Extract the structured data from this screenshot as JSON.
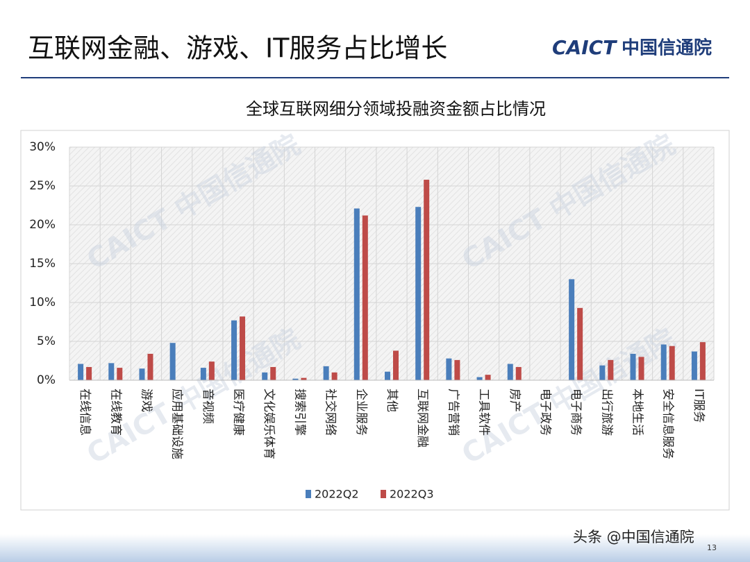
{
  "header": {
    "title": "互联网金融、游戏、IT服务占比增长",
    "logo_en": "CAICT",
    "logo_cn": "中国信通院"
  },
  "watermark": "CAICT 中国信通院",
  "footer": {
    "source": "头条 @中国信通院",
    "page_number": "13"
  },
  "chart_data": {
    "type": "bar",
    "title": "全球互联网细分领域投融资金额占比情况",
    "categories": [
      "在线信息",
      "在线教育",
      "游戏",
      "应用基础设施",
      "音视频",
      "医疗健康",
      "文化娱乐体育",
      "搜索引擎",
      "社交网络",
      "企业服务",
      "其他",
      "互联网金融",
      "广告营销",
      "工具软件",
      "房产",
      "电子政务",
      "电子商务",
      "出行旅游",
      "本地生活",
      "安全信息服务",
      "IT服务"
    ],
    "series": [
      {
        "name": "2022Q2",
        "color": "#4a7ebb",
        "values": [
          2.1,
          2.2,
          1.5,
          4.8,
          1.6,
          7.7,
          1.0,
          0.2,
          1.8,
          22.1,
          1.1,
          22.3,
          2.8,
          0.4,
          2.1,
          0,
          13.0,
          1.9,
          3.4,
          4.6,
          3.7
        ]
      },
      {
        "name": "2022Q3",
        "color": "#be4b48",
        "values": [
          1.7,
          1.6,
          3.4,
          0,
          2.4,
          8.2,
          1.7,
          0.3,
          1.0,
          21.2,
          3.8,
          25.8,
          2.6,
          0.7,
          1.7,
          0,
          9.3,
          2.6,
          3.0,
          4.4,
          4.9
        ]
      }
    ],
    "ylim": [
      0,
      30
    ],
    "yticks": [
      {
        "value": 0,
        "label": "0%"
      },
      {
        "value": 5,
        "label": "5%"
      },
      {
        "value": 10,
        "label": "10%"
      },
      {
        "value": 15,
        "label": "15%"
      },
      {
        "value": 20,
        "label": "20%"
      },
      {
        "value": 25,
        "label": "25%"
      },
      {
        "value": 30,
        "label": "30%"
      }
    ],
    "grid": true,
    "legend": "bottom"
  }
}
